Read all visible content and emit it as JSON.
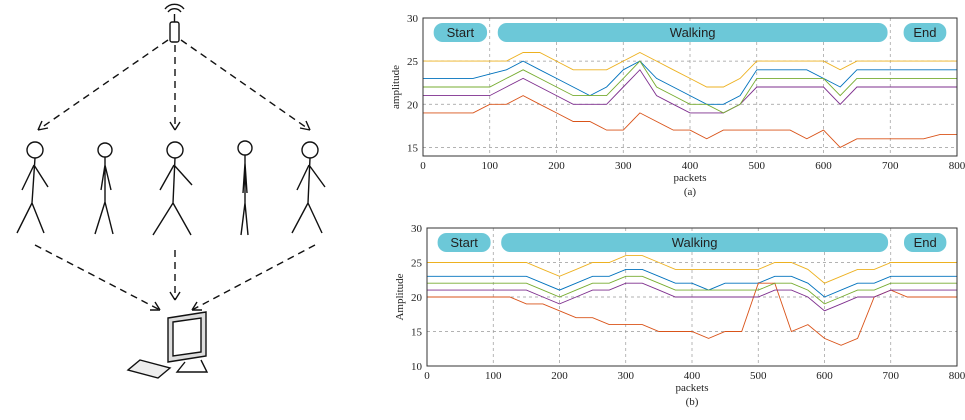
{
  "chart_data": [
    {
      "type": "line",
      "caption": "(a)",
      "x_label": "packets",
      "y_label": "amplitude",
      "annotations": [
        "Start",
        "Walking",
        "End"
      ],
      "x": [
        0,
        25,
        50,
        75,
        100,
        125,
        150,
        175,
        200,
        225,
        250,
        275,
        300,
        325,
        350,
        375,
        400,
        425,
        450,
        475,
        500,
        525,
        550,
        575,
        600,
        625,
        650,
        675,
        700,
        725,
        750,
        775,
        800
      ],
      "xlim": [
        0,
        800
      ],
      "xticks": [
        0,
        100,
        200,
        300,
        400,
        500,
        600,
        700,
        800
      ],
      "ylim": [
        14,
        30
      ],
      "yticks": [
        15,
        20,
        25,
        30
      ],
      "grid": true,
      "series": [
        {
          "color": "#0072bd",
          "values": [
            23,
            23,
            23,
            23,
            23.5,
            24,
            25,
            24,
            23,
            22,
            21,
            22,
            24,
            25,
            23,
            22,
            21,
            20,
            20,
            21,
            24,
            24,
            24,
            24,
            23,
            22,
            24,
            24,
            24,
            24,
            24,
            24,
            24
          ]
        },
        {
          "color": "#d95319",
          "values": [
            19,
            19,
            19,
            19,
            20,
            20,
            21,
            20,
            19,
            18,
            18,
            17,
            17,
            19,
            18,
            17,
            17,
            16,
            17,
            17,
            17,
            17,
            17,
            16,
            17,
            15,
            16,
            16,
            16,
            16,
            16,
            16.5,
            16.5
          ]
        },
        {
          "color": "#edb120",
          "values": [
            25,
            25,
            25,
            25,
            25,
            25,
            26,
            26,
            25,
            24,
            24,
            24,
            25,
            26,
            25,
            24,
            23,
            22,
            22,
            23,
            25,
            25,
            25,
            25,
            25,
            24,
            25,
            25,
            25,
            25,
            25,
            25,
            25
          ]
        },
        {
          "color": "#7e2f8e",
          "values": [
            21,
            21,
            21,
            21,
            21,
            22,
            23,
            22,
            21,
            20,
            20,
            20,
            22,
            24,
            21,
            20,
            19,
            19,
            19,
            20,
            22,
            22,
            22,
            22,
            22,
            20,
            22,
            22,
            22,
            22,
            22,
            22,
            22
          ]
        },
        {
          "color": "#77ac30",
          "values": [
            22,
            22,
            22,
            22,
            22,
            23,
            24,
            23,
            22,
            21,
            21,
            21,
            23,
            25,
            22,
            21,
            20,
            20,
            19,
            20,
            23,
            23,
            23,
            23,
            23,
            21,
            23,
            23,
            23,
            23,
            23,
            23,
            23
          ]
        }
      ]
    },
    {
      "type": "line",
      "caption": "(b)",
      "x_label": "packets",
      "y_label": "Amplitude",
      "annotations": [
        "Start",
        "Walking",
        "End"
      ],
      "x": [
        0,
        25,
        50,
        75,
        100,
        125,
        150,
        175,
        200,
        225,
        250,
        275,
        300,
        325,
        350,
        375,
        400,
        425,
        450,
        475,
        500,
        525,
        550,
        575,
        600,
        625,
        650,
        675,
        700,
        725,
        750,
        775,
        800
      ],
      "xlim": [
        0,
        800
      ],
      "xticks": [
        0,
        100,
        200,
        300,
        400,
        500,
        600,
        700,
        800
      ],
      "ylim": [
        10,
        30
      ],
      "yticks": [
        10,
        15,
        20,
        25,
        30
      ],
      "grid": true,
      "series": [
        {
          "color": "#0072bd",
          "values": [
            23,
            23,
            23,
            23,
            23,
            23,
            23,
            22,
            21,
            22,
            23,
            23,
            24,
            24,
            23,
            22,
            22,
            21,
            22,
            22,
            22,
            23,
            23,
            22,
            20,
            21,
            22,
            22,
            23,
            23,
            23,
            23,
            23
          ]
        },
        {
          "color": "#d95319",
          "values": [
            20,
            20,
            20,
            20,
            20,
            20,
            19,
            19,
            18,
            17,
            17,
            16,
            16,
            16,
            15,
            15,
            15,
            14,
            15,
            15,
            22,
            22,
            15,
            16,
            14,
            13,
            14,
            20,
            21,
            20,
            20,
            20,
            20
          ]
        },
        {
          "color": "#edb120",
          "values": [
            25,
            25,
            25,
            25,
            25,
            25,
            25,
            24,
            23,
            24,
            25,
            25,
            26,
            26,
            25,
            24,
            24,
            24,
            24,
            24,
            24,
            25,
            25,
            24,
            22,
            23,
            24,
            24,
            25,
            25,
            25,
            25,
            25
          ]
        },
        {
          "color": "#7e2f8e",
          "values": [
            21,
            21,
            21,
            21,
            21,
            21,
            21,
            20,
            19,
            20,
            21,
            21,
            22,
            22,
            21,
            20,
            20,
            20,
            20,
            20,
            20,
            21,
            21,
            20,
            18,
            19,
            20,
            20,
            21,
            21,
            21,
            21,
            21
          ]
        },
        {
          "color": "#77ac30",
          "values": [
            22,
            22,
            22,
            22,
            22,
            22,
            22,
            21,
            20,
            21,
            22,
            22,
            23,
            23,
            22,
            21,
            21,
            21,
            21,
            21,
            21,
            22,
            22,
            21,
            19,
            20,
            21,
            21,
            22,
            22,
            22,
            22,
            22
          ]
        }
      ]
    }
  ]
}
